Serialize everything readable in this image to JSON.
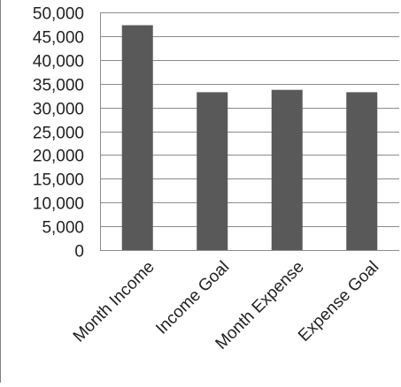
{
  "chart_data": {
    "type": "bar",
    "title": "",
    "xlabel": "",
    "ylabel": "",
    "categories": [
      "Month Income",
      "Income Goal",
      "Month Expense",
      "Expense Goal"
    ],
    "values": [
      47300,
      33200,
      33700,
      33200
    ],
    "ylim": [
      0,
      50000
    ],
    "yticks": [
      "0",
      "5,000",
      "10,000",
      "15,000",
      "20,000",
      "25,000",
      "30,000",
      "35,000",
      "40,000",
      "45,000",
      "50,000"
    ],
    "grid": true,
    "legend": "none",
    "colors": {
      "bar": "#595959",
      "grid": "#8c8c8c",
      "axis": "#8c8c8c",
      "frame": "#7f7f7f"
    }
  }
}
